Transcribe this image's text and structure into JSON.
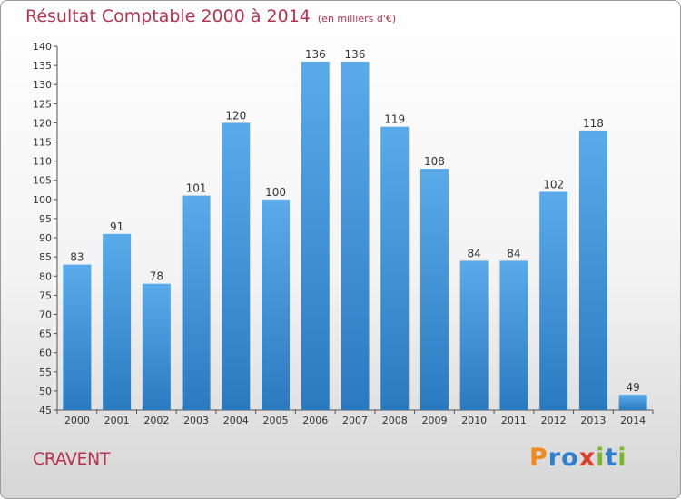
{
  "header": {
    "title": "Résultat Comptable 2000 à 2014",
    "subtitle": "(en milliers d'€)"
  },
  "footer": {
    "commune": "CRAVENT",
    "logo_text": "Proxiti"
  },
  "colors": {
    "title": "#b5334e",
    "bar_top": "#5aabea",
    "bar_bottom": "#2a7ac0",
    "logo": [
      "#f08a1c",
      "#2f7fcf",
      "#2f7fcf",
      "#e0402a",
      "#7ab82a",
      "#2f7fcf",
      "#7ab82a"
    ]
  },
  "chart_data": {
    "type": "bar",
    "categories": [
      "2000",
      "2001",
      "2002",
      "2003",
      "2004",
      "2005",
      "2006",
      "2007",
      "2008",
      "2009",
      "2010",
      "2011",
      "2012",
      "2013",
      "2014"
    ],
    "values": [
      83,
      91,
      78,
      101,
      120,
      100,
      136,
      136,
      119,
      108,
      84,
      84,
      102,
      118,
      49
    ],
    "ylim": [
      45,
      140
    ],
    "yticks": [
      45,
      50,
      55,
      60,
      65,
      70,
      75,
      80,
      85,
      90,
      95,
      100,
      105,
      110,
      115,
      120,
      125,
      130,
      135,
      140
    ],
    "grid": false,
    "legend": "none"
  }
}
